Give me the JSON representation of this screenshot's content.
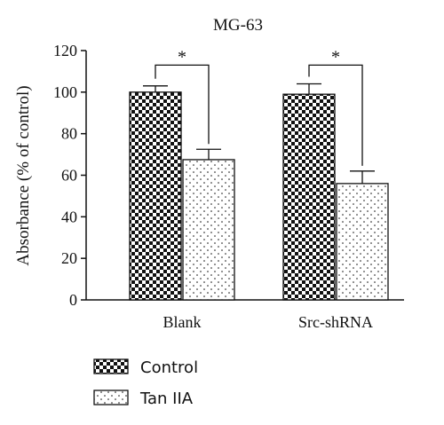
{
  "chart_data": {
    "type": "bar",
    "title": "MG-63",
    "ylabel": "Absorbance (% of control)",
    "xlabel": "",
    "ylim": [
      0,
      120
    ],
    "yticks": [
      0,
      20,
      40,
      60,
      80,
      100,
      120
    ],
    "categories": [
      "Blank",
      "Src-shRNA"
    ],
    "series": [
      {
        "name": "Control",
        "pattern": "checkerboard",
        "values": [
          100,
          99
        ],
        "errors": [
          3,
          5
        ]
      },
      {
        "name": "Tan IIA",
        "pattern": "dotted",
        "values": [
          67.5,
          56
        ],
        "errors": [
          5,
          6
        ]
      }
    ],
    "significance": [
      {
        "category": 0,
        "label": "*"
      },
      {
        "category": 1,
        "label": "*"
      }
    ],
    "grid": false,
    "legend_position": "bottom-left"
  },
  "colors": {
    "ink": "#111111",
    "background": "#ffffff"
  }
}
